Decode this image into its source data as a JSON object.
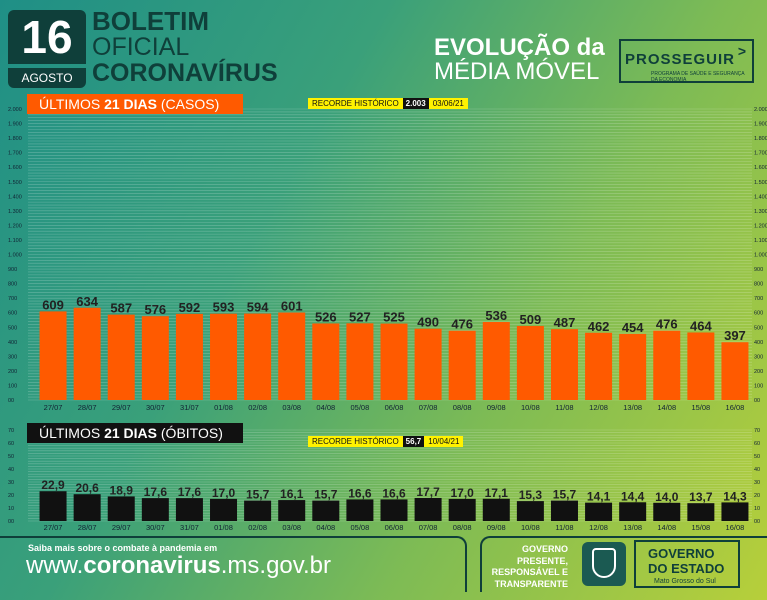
{
  "header": {
    "day": "16",
    "month": "AGOSTO",
    "title_line1": "BOLETIM",
    "title_line2": "OFICIAL",
    "title_line3": "CORONAVÍRUS",
    "evolucao_line1": "EVOLUÇÃO da",
    "evolucao_line2": "MÉDIA MÓVEL",
    "prosseguir": "PROSSEGUIR",
    "prosseguir_sub": "PROGRAMA DE SAÚDE E SEGURANÇA DA ECONOMIA"
  },
  "casos": {
    "label_prefix": "ÚLTIMOS ",
    "label_bold": "21 DIAS",
    "label_suffix": " (CASOS)",
    "record_label": "RECORDE HISTÓRICO",
    "record_value": "2.003",
    "record_date": "03/06/21"
  },
  "obitos": {
    "label_prefix": "ÚLTIMOS ",
    "label_bold": "21 DIAS",
    "label_suffix": " (ÓBITOS)",
    "record_label": "RECORDE HISTÓRICO",
    "record_value": "56,7",
    "record_date": "10/04/21"
  },
  "chart_data": [
    {
      "type": "bar",
      "categories": [
        "27/07",
        "28/07",
        "29/07",
        "30/07",
        "31/07",
        "01/08",
        "02/08",
        "03/08",
        "04/08",
        "05/08",
        "06/08",
        "07/08",
        "08/08",
        "09/08",
        "10/08",
        "11/08",
        "12/08",
        "13/08",
        "14/08",
        "15/08",
        "16/08"
      ],
      "values": [
        609,
        634,
        587,
        576,
        592,
        593,
        594,
        601,
        526,
        527,
        525,
        490,
        476,
        536,
        509,
        487,
        462,
        454,
        476,
        464,
        397
      ],
      "labels": [
        "609",
        "634",
        "587",
        "576",
        "592",
        "593",
        "594",
        "601",
        "526",
        "527",
        "525",
        "490",
        "476",
        "536",
        "509",
        "487",
        "462",
        "454",
        "476",
        "464",
        "397"
      ],
      "ylim": [
        0,
        2000
      ],
      "yticks": [
        0,
        100,
        200,
        300,
        400,
        500,
        600,
        700,
        800,
        900,
        1000,
        1100,
        1200,
        1300,
        1400,
        1500,
        1600,
        1700,
        1800,
        1900,
        2000
      ],
      "ytick_labels": [
        "00",
        "100",
        "200",
        "300",
        "400",
        "500",
        "600",
        "700",
        "800",
        "900",
        "1.000",
        "1.100",
        "1.200",
        "1.300",
        "1.400",
        "1.500",
        "1.600",
        "1.700",
        "1.800",
        "1.900",
        "2.000"
      ],
      "color": "#ff5a00",
      "grid": true
    },
    {
      "type": "bar",
      "categories": [
        "27/07",
        "28/07",
        "29/07",
        "30/07",
        "31/07",
        "01/08",
        "02/08",
        "03/08",
        "04/08",
        "05/08",
        "06/08",
        "07/08",
        "08/08",
        "09/08",
        "10/08",
        "11/08",
        "12/08",
        "13/08",
        "14/08",
        "15/08",
        "16/08"
      ],
      "values": [
        22.9,
        20.6,
        18.9,
        17.6,
        17.6,
        17.0,
        15.7,
        16.1,
        15.7,
        16.6,
        16.6,
        17.7,
        17.0,
        17.1,
        15.3,
        15.7,
        14.1,
        14.4,
        14.0,
        13.7,
        14.3
      ],
      "labels": [
        "22,9",
        "20,6",
        "18,9",
        "17,6",
        "17,6",
        "17,0",
        "15,7",
        "16,1",
        "15,7",
        "16,6",
        "16,6",
        "17,7",
        "17,0",
        "17,1",
        "15,3",
        "15,7",
        "14,1",
        "14,4",
        "14,0",
        "13,7",
        "14,3"
      ],
      "ylim": [
        0,
        70
      ],
      "yticks": [
        0,
        10,
        20,
        30,
        40,
        50,
        60,
        70
      ],
      "ytick_labels": [
        "00",
        "10",
        "20",
        "30",
        "40",
        "50",
        "60",
        "70"
      ],
      "color": "#111111",
      "grid": true
    }
  ],
  "footer": {
    "saiba": "Saiba mais sobre o combate à pandemia em",
    "url_pre": "www.",
    "url_bold": "coronavirus",
    "url_post": ".ms.gov.br",
    "tag1": "GOVERNO",
    "tag2": "PRESENTE,",
    "tag3": "RESPONSÁVEL E",
    "tag4": "TRANSPARENTE",
    "gov1": "GOVERNO",
    "gov2": "DO ESTADO",
    "gov3": "Mato Grosso do Sul"
  }
}
